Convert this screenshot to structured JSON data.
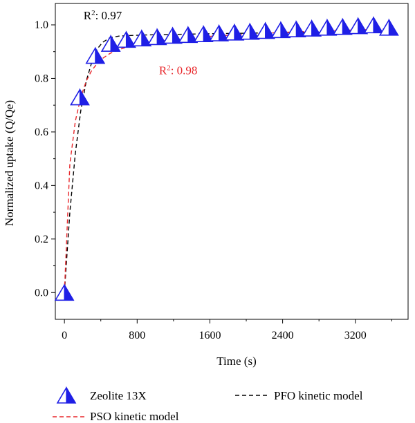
{
  "colors": {
    "zeolite": "#1f1fe6",
    "pfo": "#000000",
    "pso": "#e8262a",
    "axis": "#000000"
  },
  "chart_data": {
    "type": "scatter",
    "xlabel": "Time (s)",
    "ylabel": "Normalized uptake (Q/Qe)",
    "xlim": [
      -100,
      3780
    ],
    "ylim": [
      -0.1,
      1.08
    ],
    "xticks": [
      0,
      800,
      1600,
      2400,
      3200
    ],
    "yticks": [
      0.0,
      0.2,
      0.4,
      0.6,
      0.8,
      1.0
    ],
    "xtick_labels": [
      "0",
      "800",
      "1600",
      "2400",
      "3200"
    ],
    "ytick_labels": [
      "0.0",
      "0.2",
      "0.4",
      "0.6",
      "0.8",
      "1.0"
    ],
    "grid": false,
    "legend_position": "bottom",
    "series": [
      {
        "name": "Zeolite 13X",
        "kind": "markers",
        "marker": "half-filled-triangle",
        "x": [
          0,
          170,
          340,
          510,
          680,
          850,
          1020,
          1190,
          1360,
          1530,
          1700,
          1870,
          2040,
          2210,
          2380,
          2550,
          2720,
          2890,
          3060,
          3230,
          3400,
          3570
        ],
        "y": [
          0.0,
          0.73,
          0.885,
          0.93,
          0.945,
          0.95,
          0.955,
          0.96,
          0.963,
          0.966,
          0.969,
          0.972,
          0.975,
          0.978,
          0.981,
          0.984,
          0.987,
          0.99,
          0.993,
          0.996,
          0.999,
          0.99
        ]
      },
      {
        "name": "PFO kinetic model",
        "kind": "line",
        "style": "dashed",
        "x": [
          0,
          60,
          120,
          180,
          240,
          300,
          360,
          420,
          500,
          600,
          700,
          850,
          1000,
          1300,
          1600,
          2000,
          2400,
          2800,
          3200,
          3570
        ],
        "y": [
          0.0,
          0.3,
          0.52,
          0.68,
          0.79,
          0.86,
          0.91,
          0.935,
          0.952,
          0.958,
          0.96,
          0.962,
          0.963,
          0.965,
          0.967,
          0.969,
          0.971,
          0.972,
          0.973,
          0.974
        ]
      },
      {
        "name": "PSO kinetic model",
        "kind": "line",
        "style": "dashed",
        "x": [
          0,
          60,
          120,
          180,
          240,
          300,
          360,
          420,
          500,
          600,
          700,
          850,
          1000,
          1300,
          1600,
          2000,
          2400,
          2800,
          3200,
          3570
        ],
        "y": [
          0.0,
          0.48,
          0.64,
          0.73,
          0.79,
          0.83,
          0.855,
          0.875,
          0.893,
          0.908,
          0.918,
          0.929,
          0.937,
          0.948,
          0.957,
          0.965,
          0.972,
          0.977,
          0.981,
          0.985
        ]
      }
    ],
    "annotations": [
      {
        "text_base": "R",
        "text_sup": "2",
        "text_value": ": 0.97",
        "color": "#000000",
        "x": 210,
        "y": 1.02
      },
      {
        "text_base": "R",
        "text_sup": "2",
        "text_value": ": 0.98",
        "color": "#e8262a",
        "x": 1040,
        "y": 0.815
      }
    ]
  }
}
